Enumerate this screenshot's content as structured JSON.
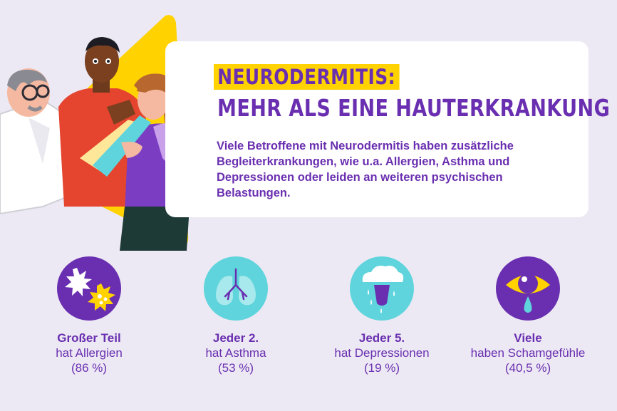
{
  "header": {
    "title_line1": "NEURODERMITIS:",
    "title_line2": "MEHR ALS EINE HAUTERKRANKUNG",
    "intro": "Viele Betroffene mit Neurodermitis haben zusätzliche Begleiterkrankungen, wie u.a. Allergien, Asthma und Depressionen oder leiden an weiteren psychischen Belastungen."
  },
  "colors": {
    "background": "#ece9f4",
    "purple": "#6a2fb0",
    "yellow": "#ffd200",
    "cyan": "#5fd4dc"
  },
  "stats": [
    {
      "icon": "allergy-icon",
      "lead": "Großer Teil",
      "text": "hat Allergien",
      "value": "(86 %)"
    },
    {
      "icon": "lungs-icon",
      "lead": "Jeder 2.",
      "text": "hat Asthma",
      "value": "(53 %)"
    },
    {
      "icon": "depression-icon",
      "lead": "Jeder 5.",
      "text": "hat Depressionen",
      "value": "(19 %)"
    },
    {
      "icon": "tear-eye-icon",
      "lead": "Viele",
      "text": "haben Schamgefühle",
      "value": "(40,5 %)"
    }
  ]
}
